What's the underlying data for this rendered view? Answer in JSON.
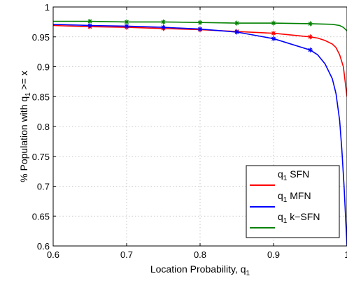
{
  "chart_data": {
    "type": "line",
    "xlabel": {
      "main": "Location Probability, q",
      "sub": "1"
    },
    "ylabel": {
      "main": "% Population with q",
      "sub": "1",
      "tail": " >= x"
    },
    "xlim": [
      0.6,
      1.0
    ],
    "ylim": [
      0.6,
      1.0
    ],
    "x_ticks": [
      0.6,
      0.7,
      0.8,
      0.9,
      1.0
    ],
    "x_tick_labels": [
      "0.6",
      "0.7",
      "0.8",
      "0.9",
      "1"
    ],
    "y_ticks": [
      0.6,
      0.65,
      0.7,
      0.75,
      0.8,
      0.85,
      0.9,
      0.95,
      1.0
    ],
    "y_tick_labels": [
      "0.6",
      "0.65",
      "0.7",
      "0.75",
      "0.8",
      "0.85",
      "0.9",
      "0.95",
      "1"
    ],
    "grid": true,
    "legend_position": "lower-right",
    "series": [
      {
        "name": {
          "main": "q",
          "sub": "1",
          "tail": " SFN"
        },
        "color": "#ff0000",
        "marker": "asterisk",
        "marker_x": [
          0.65,
          0.7,
          0.75,
          0.8,
          0.85,
          0.9,
          0.95
        ],
        "points": [
          [
            0.6,
            0.969
          ],
          [
            0.65,
            0.967
          ],
          [
            0.7,
            0.966
          ],
          [
            0.75,
            0.964
          ],
          [
            0.8,
            0.962
          ],
          [
            0.85,
            0.959
          ],
          [
            0.9,
            0.956
          ],
          [
            0.95,
            0.95
          ],
          [
            0.96,
            0.948
          ],
          [
            0.97,
            0.944
          ],
          [
            0.98,
            0.938
          ],
          [
            0.985,
            0.932
          ],
          [
            0.99,
            0.92
          ],
          [
            0.995,
            0.9
          ],
          [
            0.998,
            0.87
          ],
          [
            1.0,
            0.85
          ]
        ]
      },
      {
        "name": {
          "main": "q",
          "sub": "1",
          "tail": " MFN"
        },
        "color": "#0000ff",
        "marker": "asterisk",
        "marker_x": [
          0.65,
          0.7,
          0.75,
          0.8,
          0.85,
          0.9,
          0.95
        ],
        "points": [
          [
            0.6,
            0.971
          ],
          [
            0.65,
            0.969
          ],
          [
            0.7,
            0.968
          ],
          [
            0.75,
            0.966
          ],
          [
            0.8,
            0.963
          ],
          [
            0.85,
            0.958
          ],
          [
            0.9,
            0.947
          ],
          [
            0.95,
            0.928
          ],
          [
            0.96,
            0.92
          ],
          [
            0.97,
            0.905
          ],
          [
            0.98,
            0.88
          ],
          [
            0.985,
            0.855
          ],
          [
            0.99,
            0.81
          ],
          [
            0.993,
            0.76
          ],
          [
            0.996,
            0.7
          ],
          [
            0.998,
            0.65
          ],
          [
            1.0,
            0.6
          ]
        ]
      },
      {
        "name": {
          "main": "q",
          "sub": "1",
          "tail": " k−SFN"
        },
        "color": "#008000",
        "marker": "asterisk",
        "marker_x": [
          0.65,
          0.7,
          0.75,
          0.8,
          0.85,
          0.9,
          0.95
        ],
        "points": [
          [
            0.6,
            0.976
          ],
          [
            0.65,
            0.976
          ],
          [
            0.7,
            0.975
          ],
          [
            0.75,
            0.975
          ],
          [
            0.8,
            0.974
          ],
          [
            0.85,
            0.973
          ],
          [
            0.9,
            0.973
          ],
          [
            0.95,
            0.972
          ],
          [
            0.98,
            0.971
          ],
          [
            0.99,
            0.969
          ],
          [
            0.995,
            0.966
          ],
          [
            1.0,
            0.96
          ]
        ]
      }
    ]
  }
}
